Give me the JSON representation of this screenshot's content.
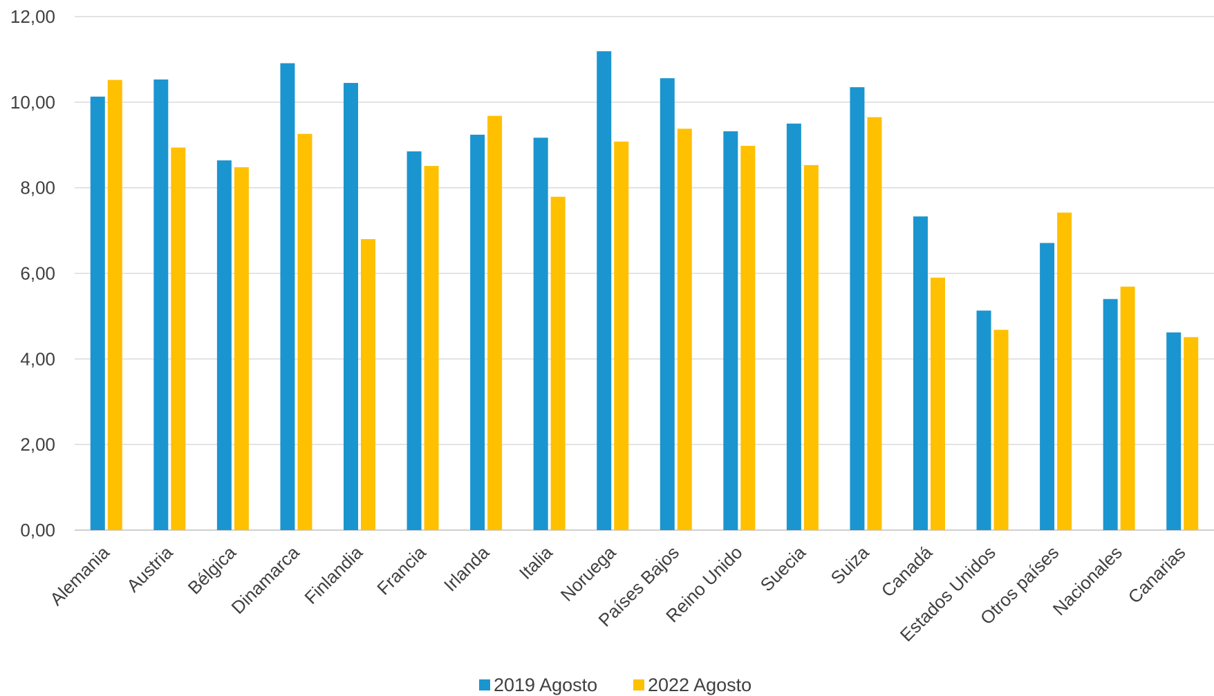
{
  "chart_data": {
    "type": "bar",
    "categories": [
      "Alemania",
      "Austria",
      "Bélgica",
      "Dinamarca",
      "Finlandia",
      "Francia",
      "Irlanda",
      "Italia",
      "Noruega",
      "Países Bajos",
      "Reino Unido",
      "Suecia",
      "Suiza",
      "Canadá",
      "Estados Unidos",
      "Otros países",
      "Nacionales",
      "Canarias"
    ],
    "series": [
      {
        "name": "2019 Agosto",
        "color": "#1b95cf",
        "values": [
          10.13,
          10.53,
          8.64,
          10.91,
          10.45,
          8.85,
          9.24,
          9.17,
          11.19,
          10.56,
          9.32,
          9.5,
          10.35,
          7.33,
          5.13,
          6.71,
          5.4,
          4.62
        ]
      },
      {
        "name": "2022 Agosto",
        "color": "#ffc000",
        "values": [
          10.52,
          8.94,
          8.48,
          9.26,
          6.8,
          8.51,
          9.68,
          7.79,
          9.08,
          9.38,
          8.98,
          8.53,
          9.65,
          5.9,
          4.68,
          7.42,
          5.69,
          4.51
        ]
      }
    ],
    "ylim": [
      0,
      12
    ],
    "yticks": [
      "0,00",
      "2,00",
      "4,00",
      "6,00",
      "8,00",
      "10,00",
      "12,00"
    ],
    "ytick_values": [
      0,
      2,
      4,
      6,
      8,
      10,
      12
    ],
    "grid": true,
    "legend_position": "bottom-center"
  }
}
